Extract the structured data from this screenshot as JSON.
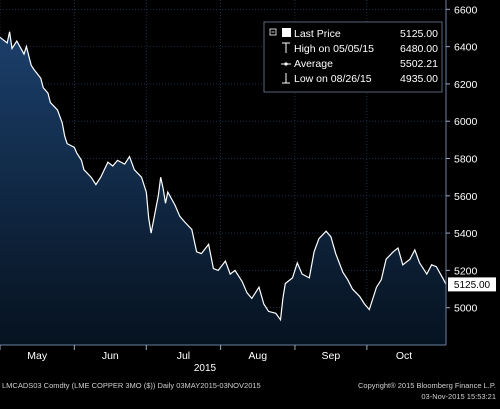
{
  "footer": {
    "left": "LMCADS03 Comdty (LME COPPER   3MO ($))  Daily 03MAY2015-03NOV2015",
    "copyright": "Copyright® 2015 Bloomberg Finance L.P.",
    "timestamp": "03-Nov-2015 15:53:21"
  },
  "colors": {
    "background": "#000000",
    "area_top": "#1b3f6b",
    "area_bottom": "#06121f",
    "line": "#ffffff",
    "grid": "#2e4a73",
    "legend_bg": "#000000",
    "last_price_box": "#ffffff"
  },
  "chart_data": {
    "type": "area",
    "title": "",
    "xlabel": "2015",
    "ylabel": "",
    "ylim": [
      4800,
      6650
    ],
    "yticks": [
      5000,
      5200,
      5400,
      5600,
      5800,
      6000,
      6200,
      6400,
      6600
    ],
    "y_tick_labels": [
      "5000",
      "5200",
      "5400",
      "5600",
      "5800",
      "6000",
      "6200",
      "6400",
      "6600"
    ],
    "x_tick_labels": [
      "May",
      "Jun",
      "Jul",
      "Aug",
      "Sep",
      "Oct"
    ],
    "x_tick_dates": [
      "2015-05-01",
      "2015-06-01",
      "2015-07-01",
      "2015-08-01",
      "2015-09-01",
      "2015-10-01"
    ],
    "x_range": [
      "2015-05-01",
      "2015-11-03"
    ],
    "grid": true,
    "legend_position": "top-right",
    "last_price_label": "5125.00",
    "legend": [
      {
        "label": "Last Price",
        "value": "5125.00",
        "marker": "square"
      },
      {
        "label": "High on 05/05/15",
        "value": "6480.00",
        "marker": "high"
      },
      {
        "label": "Average",
        "value": "5502.21",
        "marker": "average"
      },
      {
        "label": "Low on 08/26/15",
        "value": "4935.00",
        "marker": "low"
      }
    ],
    "series": [
      {
        "name": "Last Price",
        "x": [
          "2015-05-01",
          "2015-05-04",
          "2015-05-05",
          "2015-05-06",
          "2015-05-08",
          "2015-05-11",
          "2015-05-12",
          "2015-05-14",
          "2015-05-15",
          "2015-05-18",
          "2015-05-19",
          "2015-05-21",
          "2015-05-22",
          "2015-05-25",
          "2015-05-27",
          "2015-05-28",
          "2015-05-29",
          "2015-06-01",
          "2015-06-02",
          "2015-06-04",
          "2015-06-05",
          "2015-06-08",
          "2015-06-10",
          "2015-06-12",
          "2015-06-15",
          "2015-06-17",
          "2015-06-19",
          "2015-06-22",
          "2015-06-24",
          "2015-06-26",
          "2015-06-29",
          "2015-07-01",
          "2015-07-02",
          "2015-07-03",
          "2015-07-06",
          "2015-07-07",
          "2015-07-08",
          "2015-07-09",
          "2015-07-10",
          "2015-07-13",
          "2015-07-15",
          "2015-07-17",
          "2015-07-20",
          "2015-07-22",
          "2015-07-24",
          "2015-07-27",
          "2015-07-29",
          "2015-07-31",
          "2015-08-03",
          "2015-08-05",
          "2015-08-07",
          "2015-08-10",
          "2015-08-12",
          "2015-08-14",
          "2015-08-17",
          "2015-08-19",
          "2015-08-21",
          "2015-08-24",
          "2015-08-26",
          "2015-08-27",
          "2015-08-28",
          "2015-08-31",
          "2015-09-02",
          "2015-09-04",
          "2015-09-07",
          "2015-09-09",
          "2015-09-11",
          "2015-09-14",
          "2015-09-16",
          "2015-09-18",
          "2015-09-21",
          "2015-09-23",
          "2015-09-25",
          "2015-09-28",
          "2015-09-30",
          "2015-10-02",
          "2015-10-05",
          "2015-10-07",
          "2015-10-09",
          "2015-10-12",
          "2015-10-14",
          "2015-10-16",
          "2015-10-19",
          "2015-10-21",
          "2015-10-23",
          "2015-10-26",
          "2015-10-28",
          "2015-10-30",
          "2015-11-02",
          "2015-11-03"
        ],
        "y": [
          6450,
          6420,
          6480,
          6390,
          6430,
          6360,
          6400,
          6300,
          6280,
          6230,
          6180,
          6150,
          6100,
          6060,
          5990,
          5920,
          5880,
          5860,
          5830,
          5790,
          5740,
          5700,
          5660,
          5700,
          5780,
          5760,
          5790,
          5770,
          5810,
          5740,
          5700,
          5620,
          5480,
          5400,
          5600,
          5700,
          5640,
          5560,
          5620,
          5550,
          5490,
          5460,
          5420,
          5300,
          5290,
          5340,
          5210,
          5200,
          5250,
          5180,
          5200,
          5140,
          5080,
          5050,
          5110,
          5020,
          4980,
          4970,
          4935,
          5050,
          5130,
          5160,
          5240,
          5180,
          5160,
          5300,
          5370,
          5410,
          5380,
          5290,
          5190,
          5150,
          5100,
          5060,
          5020,
          4990,
          5110,
          5150,
          5260,
          5300,
          5320,
          5230,
          5260,
          5310,
          5240,
          5180,
          5230,
          5220,
          5150,
          5125
        ]
      }
    ]
  }
}
